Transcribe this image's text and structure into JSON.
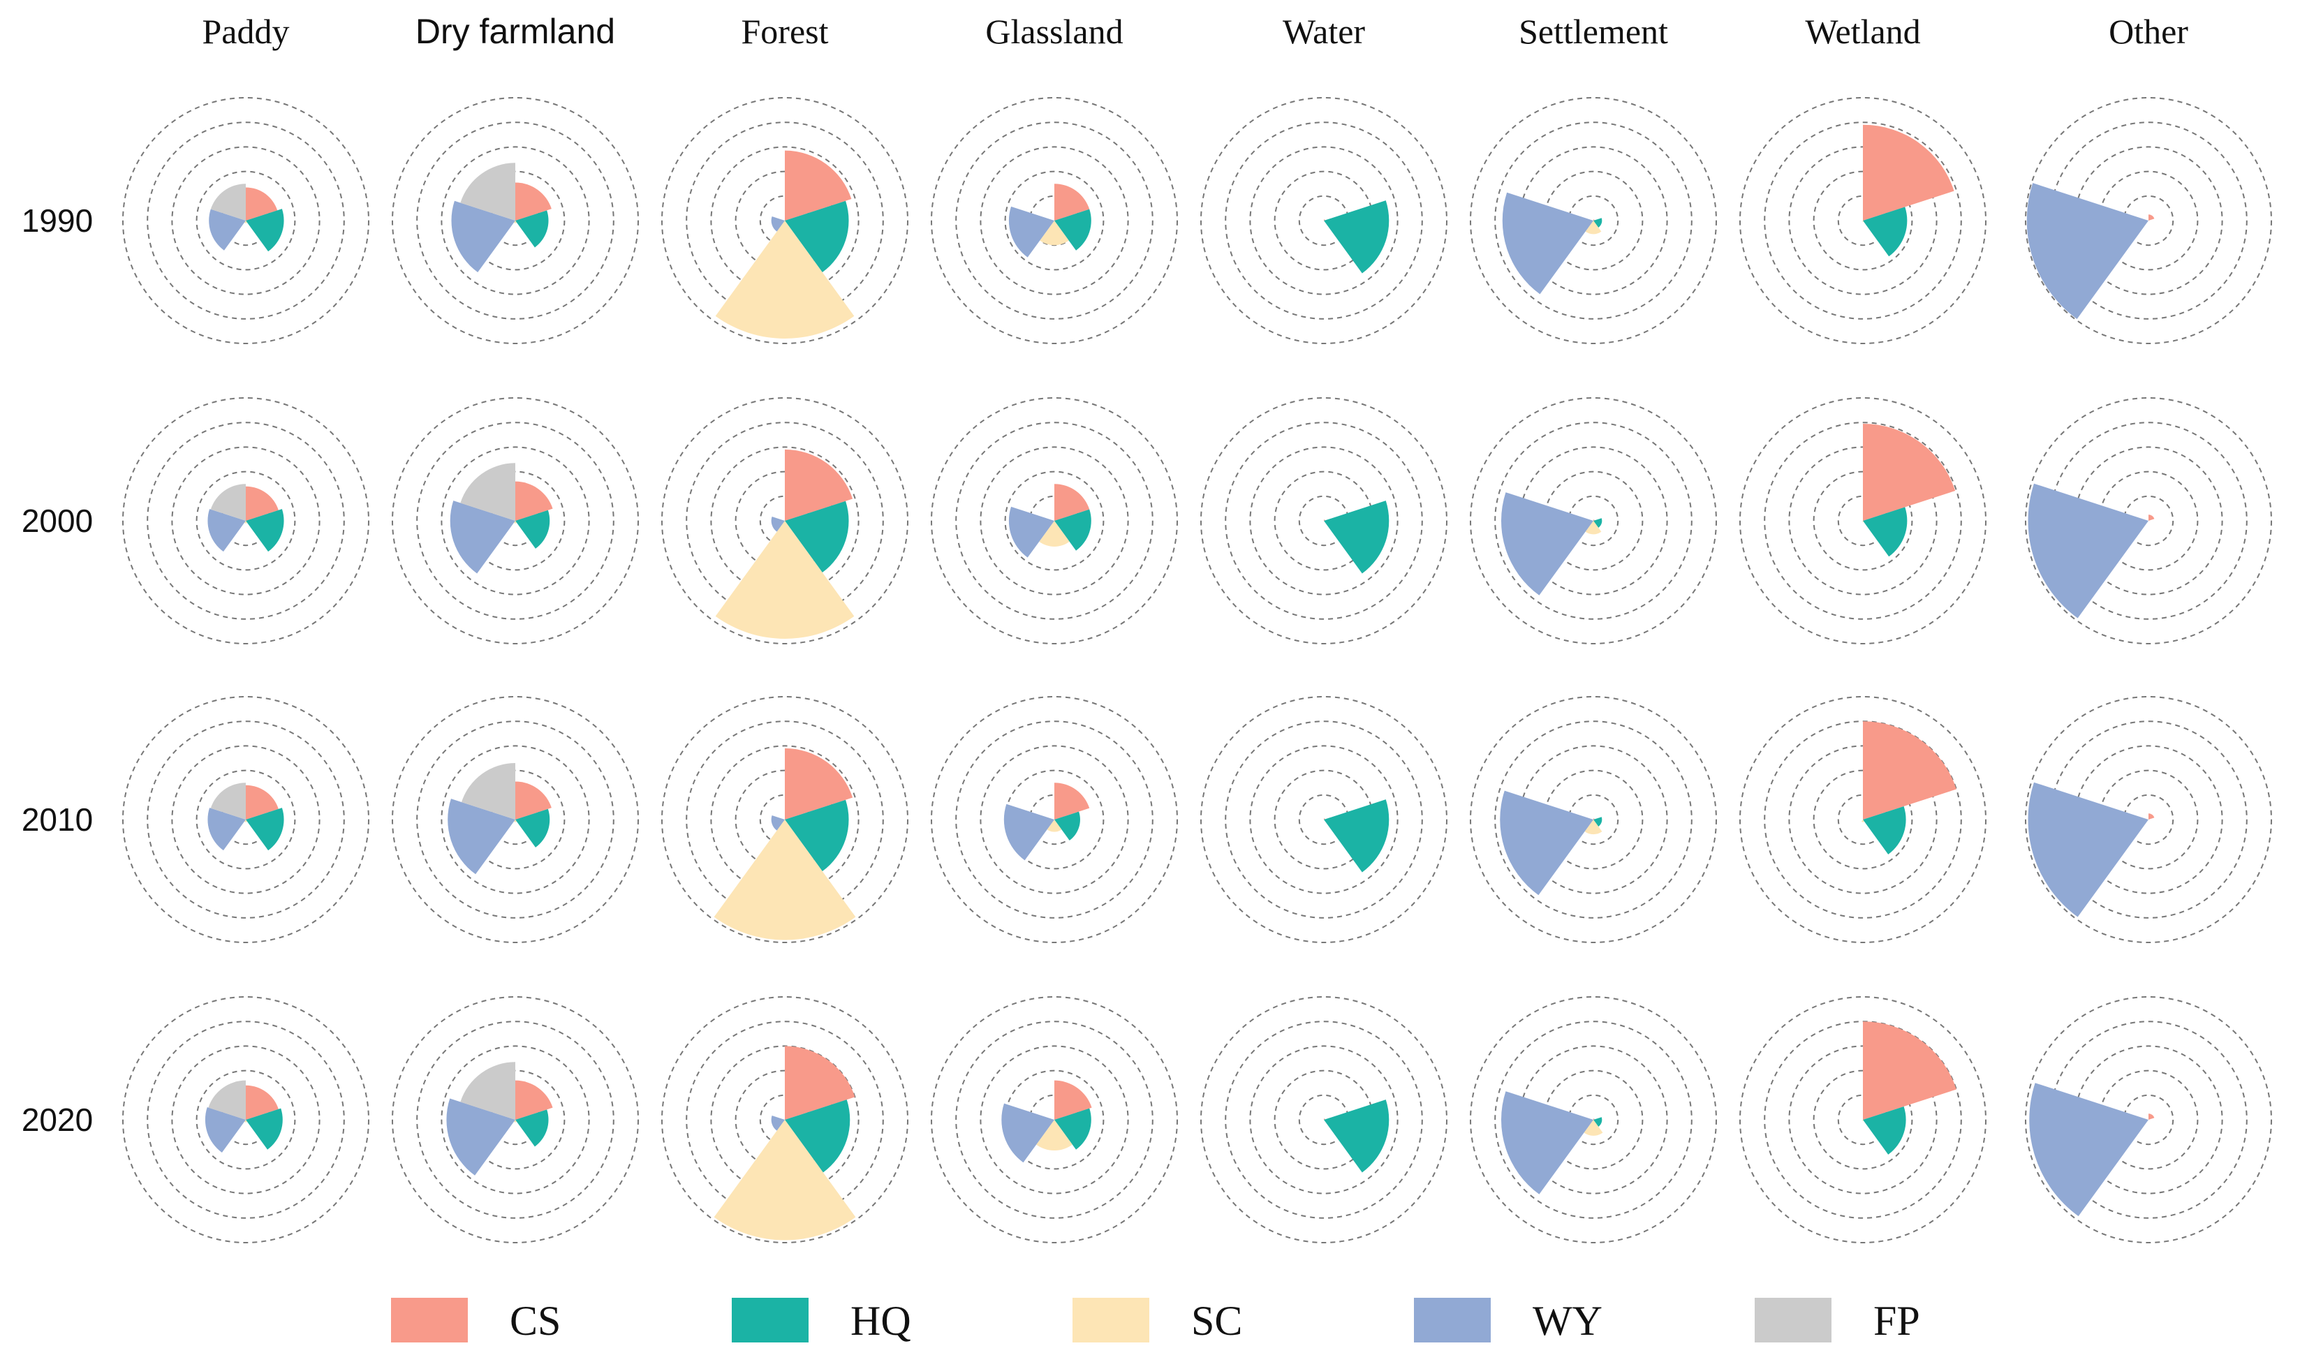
{
  "chart_data": {
    "type": "polar-bar-small-multiples",
    "title": "",
    "columns": [
      "Paddy",
      "Dry farmland",
      "Forest",
      "Glassland",
      "Water",
      "Settlement",
      "Wetland",
      "Other"
    ],
    "rows": [
      "1990",
      "2000",
      "2010",
      "2020"
    ],
    "legend": [
      {
        "key": "CS",
        "color": "#F89A8A"
      },
      {
        "key": "HQ",
        "color": "#1BB3A5"
      },
      {
        "key": "SC",
        "color": "#FDE5B5"
      },
      {
        "key": "WY",
        "color": "#91A9D4"
      },
      {
        "key": "FP",
        "color": "#CBCBCB"
      }
    ],
    "ring_levels": [
      0.2,
      0.4,
      0.6,
      0.8,
      1.0
    ],
    "values": {
      "Paddy": {
        "1990": [
          0.27,
          0.31,
          0.02,
          0.3,
          0.3
        ],
        "2000": [
          0.28,
          0.31,
          0.02,
          0.31,
          0.3
        ],
        "2010": [
          0.28,
          0.31,
          0.02,
          0.31,
          0.3
        ],
        "2020": [
          0.28,
          0.3,
          0.02,
          0.33,
          0.32
        ]
      },
      "Dry farmland": {
        "1990": [
          0.31,
          0.27,
          0.02,
          0.52,
          0.47
        ],
        "2000": [
          0.32,
          0.28,
          0.02,
          0.53,
          0.47
        ],
        "2010": [
          0.31,
          0.28,
          0.02,
          0.55,
          0.46
        ],
        "2020": [
          0.32,
          0.27,
          0.02,
          0.56,
          0.47
        ]
      },
      "Forest": {
        "1990": [
          0.57,
          0.52,
          0.96,
          0.11,
          0.0
        ],
        "2000": [
          0.58,
          0.52,
          0.96,
          0.11,
          0.0
        ],
        "2010": [
          0.58,
          0.52,
          0.98,
          0.11,
          0.0
        ],
        "2020": [
          0.6,
          0.53,
          0.98,
          0.11,
          0.0
        ]
      },
      "Glassland": {
        "1990": [
          0.3,
          0.3,
          0.2,
          0.37,
          0.0
        ],
        "2000": [
          0.3,
          0.3,
          0.21,
          0.37,
          0.0
        ],
        "2010": [
          0.3,
          0.21,
          0.1,
          0.41,
          0.0
        ],
        "2020": [
          0.32,
          0.3,
          0.25,
          0.43,
          0.0
        ]
      },
      "Water": {
        "1990": [
          0.01,
          0.53,
          0.0,
          0.0,
          0.0
        ],
        "2000": [
          0.01,
          0.53,
          0.0,
          0.0,
          0.0
        ],
        "2010": [
          0.01,
          0.53,
          0.0,
          0.0,
          0.0
        ],
        "2020": [
          0.01,
          0.53,
          0.0,
          0.0,
          0.0
        ]
      },
      "Settlement": {
        "1990": [
          0.01,
          0.07,
          0.11,
          0.74,
          0.0
        ],
        "2000": [
          0.01,
          0.07,
          0.11,
          0.75,
          0.0
        ],
        "2010": [
          0.01,
          0.07,
          0.12,
          0.76,
          0.0
        ],
        "2020": [
          0.01,
          0.07,
          0.13,
          0.75,
          0.0
        ]
      },
      "Wetland": {
        "1990": [
          0.78,
          0.36,
          0.01,
          0.0,
          0.0
        ],
        "2000": [
          0.79,
          0.36,
          0.01,
          0.0,
          0.0
        ],
        "2010": [
          0.8,
          0.35,
          0.02,
          0.0,
          0.0
        ],
        "2020": [
          0.8,
          0.35,
          0.01,
          0.0,
          0.0
        ]
      },
      "Other": {
        "1990": [
          0.05,
          0.0,
          0.0,
          0.99,
          0.0
        ],
        "2000": [
          0.05,
          0.0,
          0.0,
          0.98,
          0.0
        ],
        "2010": [
          0.05,
          0.0,
          0.0,
          0.98,
          0.0
        ],
        "2020": [
          0.05,
          0.0,
          0.0,
          0.97,
          0.0
        ]
      }
    }
  }
}
